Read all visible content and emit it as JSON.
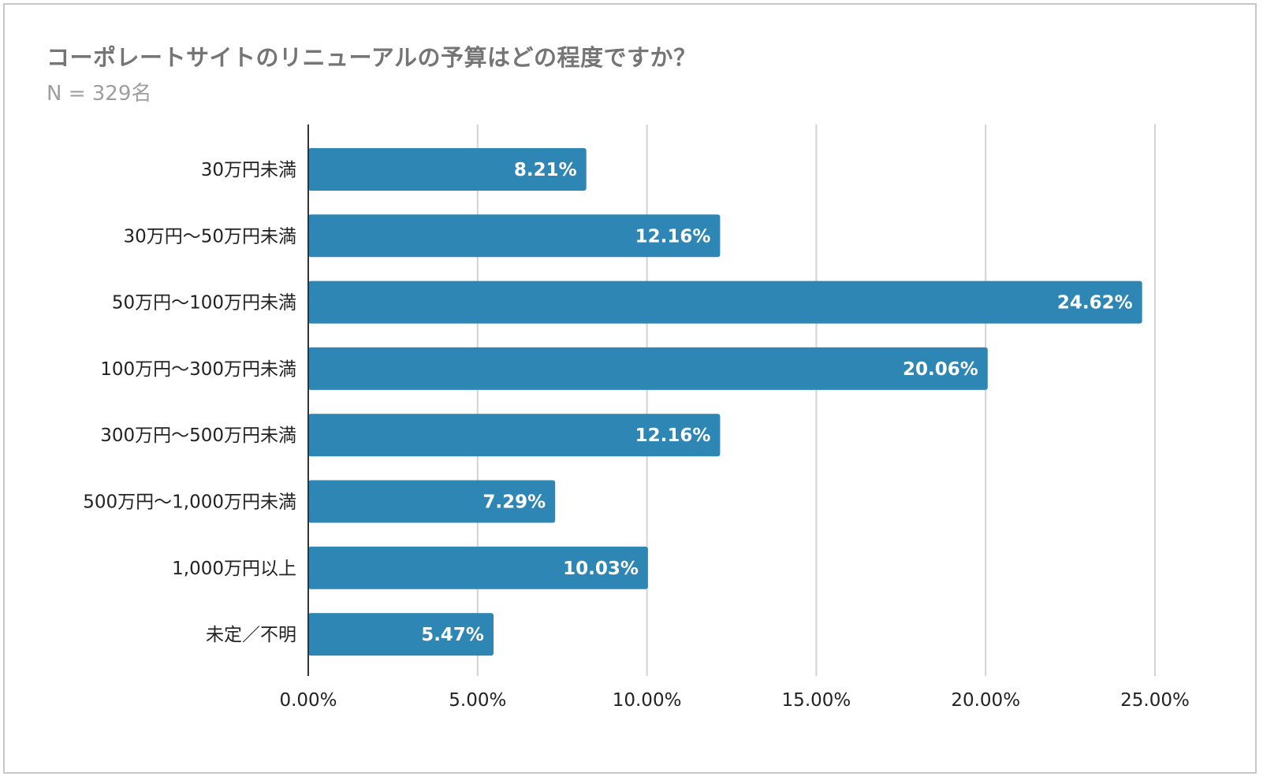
{
  "chart_data": {
    "type": "bar",
    "orientation": "horizontal",
    "title": "コーポレートサイトのリニューアルの予算はどの程度ですか？",
    "subtitle": "N = 329名",
    "categories": [
      "30万円未満",
      "30万円〜50万円未満",
      "50万円〜100万円未満",
      "100万円〜300万円未満",
      "300万円〜500万円未満",
      "500万円〜1,000万円未満",
      "1,000万円以上",
      "未定／不明"
    ],
    "values": [
      8.21,
      12.16,
      24.62,
      20.06,
      12.16,
      7.29,
      10.03,
      5.47
    ],
    "data_labels": [
      "8.21%",
      "12.16%",
      "24.62%",
      "20.06%",
      "12.16%",
      "7.29%",
      "10.03%",
      "5.47%"
    ],
    "xlim": [
      0,
      25
    ],
    "x_ticks": [
      0,
      5,
      10,
      15,
      20,
      25
    ],
    "x_tick_labels": [
      "0.00%",
      "5.00%",
      "10.00%",
      "15.00%",
      "20.00%",
      "25.00%"
    ],
    "xlabel": "",
    "ylabel": "",
    "grid": true,
    "legend": "none",
    "bar_color": "#2e86b4",
    "grid_color": "#d3d3d3"
  }
}
